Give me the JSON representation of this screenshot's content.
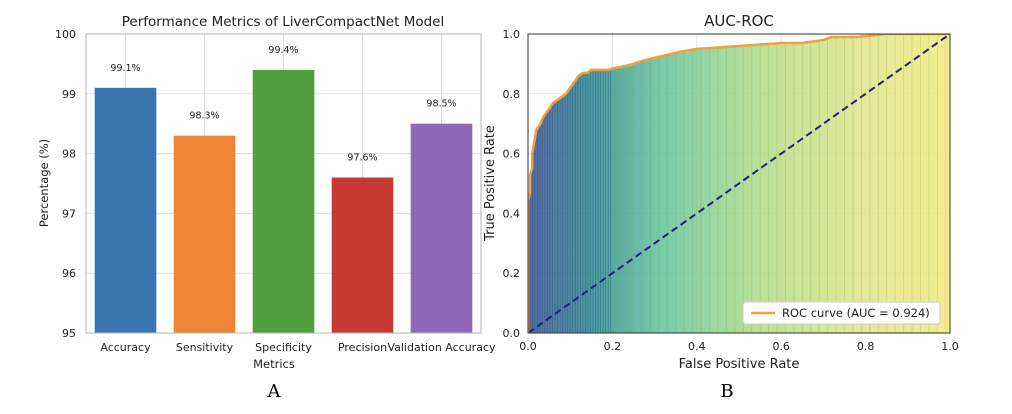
{
  "panels": {
    "a_label": "A",
    "b_label": "B"
  },
  "chart_data": [
    {
      "type": "bar",
      "title": "Performance Metrics of LiverCompactNet Model",
      "xlabel": "Metrics",
      "ylabel": "Percentage (%)",
      "ylim": [
        95,
        100
      ],
      "yticks": [
        95,
        96,
        97,
        98,
        99,
        100
      ],
      "categories": [
        "Accuracy",
        "Sensitivity",
        "Specificity",
        "Precision",
        "Validation Accuracy"
      ],
      "values": [
        99.1,
        98.3,
        99.4,
        97.6,
        98.5
      ],
      "value_labels": [
        "99.1%",
        "98.3%",
        "99.4%",
        "97.6%",
        "98.5%"
      ],
      "colors": [
        "#3a75b0",
        "#ef8636",
        "#519e3e",
        "#c53932",
        "#8d69b8"
      ],
      "grid": true
    },
    {
      "type": "line",
      "title": "AUC-ROC",
      "xlabel": "False Positive Rate",
      "ylabel": "True Positive Rate",
      "xlim": [
        0,
        1
      ],
      "ylim": [
        0,
        1
      ],
      "xticks": [
        "0.0",
        "0.2",
        "0.4",
        "0.6",
        "0.8",
        "1.0"
      ],
      "yticks": [
        "0.0",
        "0.2",
        "0.4",
        "0.6",
        "0.8",
        "1.0"
      ],
      "grid": true,
      "legend_position": "bottom-right",
      "series": [
        {
          "name": "ROC curve (AUC = 0.924)",
          "color": "#f0a03c",
          "x": [
            0.0,
            0.0,
            0.005,
            0.005,
            0.01,
            0.01,
            0.015,
            0.02,
            0.025,
            0.03,
            0.035,
            0.04,
            0.05,
            0.06,
            0.07,
            0.08,
            0.09,
            0.1,
            0.11,
            0.12,
            0.13,
            0.14,
            0.15,
            0.17,
            0.19,
            0.2,
            0.22,
            0.25,
            0.27,
            0.3,
            0.33,
            0.36,
            0.4,
            0.45,
            0.5,
            0.55,
            0.6,
            0.65,
            0.7,
            0.72,
            0.78,
            0.85,
            0.9,
            0.95,
            1.0
          ],
          "y": [
            0.0,
            0.44,
            0.47,
            0.53,
            0.55,
            0.6,
            0.64,
            0.68,
            0.69,
            0.7,
            0.72,
            0.73,
            0.75,
            0.77,
            0.78,
            0.79,
            0.8,
            0.82,
            0.84,
            0.86,
            0.87,
            0.87,
            0.88,
            0.88,
            0.88,
            0.885,
            0.89,
            0.9,
            0.91,
            0.92,
            0.93,
            0.94,
            0.95,
            0.955,
            0.96,
            0.965,
            0.97,
            0.97,
            0.98,
            0.99,
            0.99,
            1.0,
            1.0,
            1.0,
            1.0
          ]
        },
        {
          "name": "",
          "style": "dashed",
          "color": "#1f1f80",
          "x": [
            0,
            1
          ],
          "y": [
            0,
            1
          ]
        }
      ]
    }
  ]
}
